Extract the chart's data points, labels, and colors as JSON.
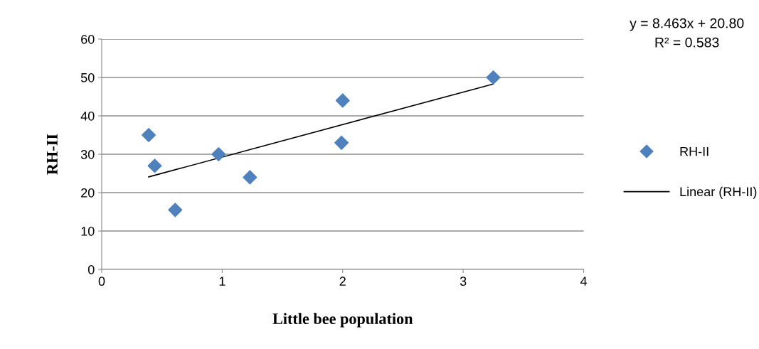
{
  "chart_data": {
    "type": "scatter",
    "xlabel": "Little bee population",
    "ylabel": "RH-II",
    "series": [
      {
        "name": "RH-II",
        "color": "#4f81bd",
        "marker": "diamond",
        "x": [
          0.39,
          0.44,
          0.61,
          0.97,
          1.23,
          2.0,
          1.99,
          3.25
        ],
        "values": [
          35,
          27,
          15.5,
          30,
          24,
          44,
          33,
          50
        ]
      },
      {
        "name": "Linear (RH-II)",
        "type": "line",
        "color": "#000000",
        "marker": "none",
        "line_style": "solid",
        "x": [
          0.39,
          3.25
        ],
        "values": [
          24.1,
          48.3
        ]
      }
    ],
    "annotations": [
      "y = 8.463x + 20.80",
      "R² = 0.583"
    ],
    "xlim": [
      0,
      4
    ],
    "xticks": [
      0,
      1,
      2,
      3,
      4
    ],
    "ylim": [
      0,
      60
    ],
    "yticks": [
      0,
      10,
      20,
      30,
      40,
      50,
      60
    ],
    "grid": "y",
    "legend": "right"
  }
}
